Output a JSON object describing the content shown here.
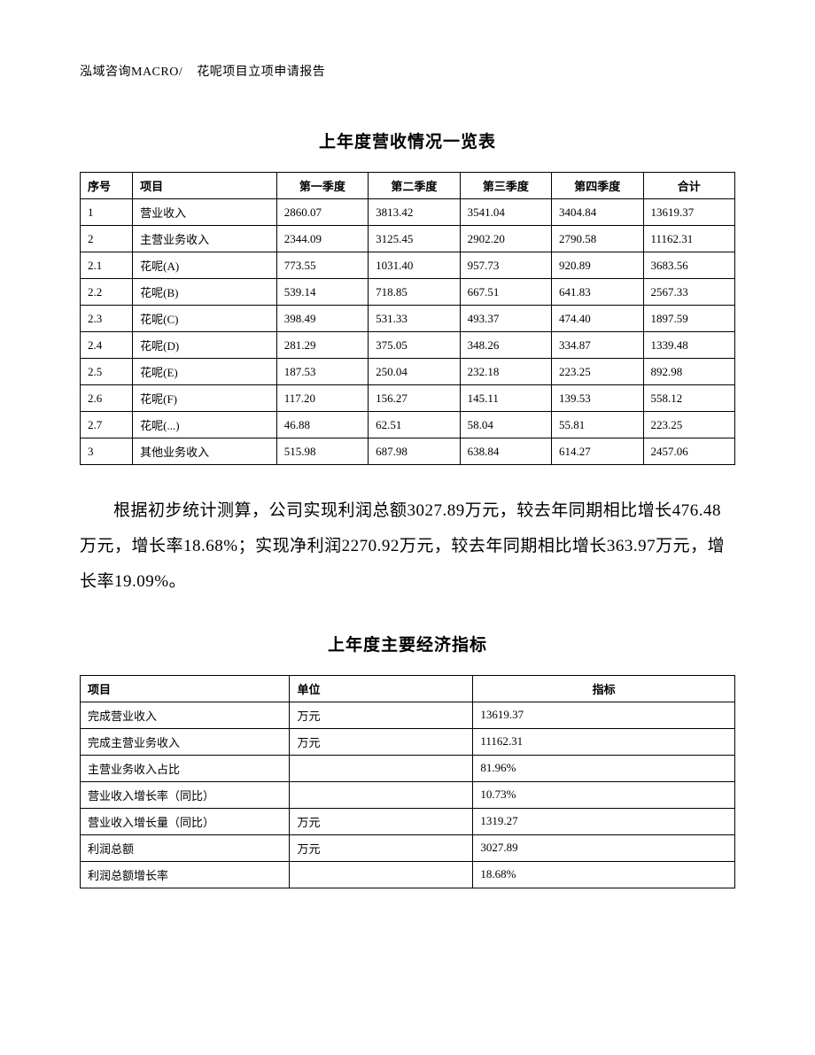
{
  "header": {
    "left": "泓域咨询MACRO/",
    "right": "花呢项目立项申请报告"
  },
  "section1": {
    "title": "上年度营收情况一览表"
  },
  "table1": {
    "headers": {
      "c1": "序号",
      "c2": "项目",
      "c3": "第一季度",
      "c4": "第二季度",
      "c5": "第三季度",
      "c6": "第四季度",
      "c7": "合计"
    },
    "rows": [
      {
        "c1": "1",
        "c2": "营业收入",
        "c3": "2860.07",
        "c4": "3813.42",
        "c5": "3541.04",
        "c6": "3404.84",
        "c7": "13619.37"
      },
      {
        "c1": "2",
        "c2": "主营业务收入",
        "c3": "2344.09",
        "c4": "3125.45",
        "c5": "2902.20",
        "c6": "2790.58",
        "c7": "11162.31"
      },
      {
        "c1": "2.1",
        "c2": "花呢(A)",
        "c3": "773.55",
        "c4": "1031.40",
        "c5": "957.73",
        "c6": "920.89",
        "c7": "3683.56"
      },
      {
        "c1": "2.2",
        "c2": "花呢(B)",
        "c3": "539.14",
        "c4": "718.85",
        "c5": "667.51",
        "c6": "641.83",
        "c7": "2567.33"
      },
      {
        "c1": "2.3",
        "c2": "花呢(C)",
        "c3": "398.49",
        "c4": "531.33",
        "c5": "493.37",
        "c6": "474.40",
        "c7": "1897.59"
      },
      {
        "c1": "2.4",
        "c2": "花呢(D)",
        "c3": "281.29",
        "c4": "375.05",
        "c5": "348.26",
        "c6": "334.87",
        "c7": "1339.48"
      },
      {
        "c1": "2.5",
        "c2": "花呢(E)",
        "c3": "187.53",
        "c4": "250.04",
        "c5": "232.18",
        "c6": "223.25",
        "c7": "892.98"
      },
      {
        "c1": "2.6",
        "c2": "花呢(F)",
        "c3": "117.20",
        "c4": "156.27",
        "c5": "145.11",
        "c6": "139.53",
        "c7": "558.12"
      },
      {
        "c1": "2.7",
        "c2": "花呢(...)",
        "c3": "46.88",
        "c4": "62.51",
        "c5": "58.04",
        "c6": "55.81",
        "c7": "223.25"
      },
      {
        "c1": "3",
        "c2": "其他业务收入",
        "c3": "515.98",
        "c4": "687.98",
        "c5": "638.84",
        "c6": "614.27",
        "c7": "2457.06"
      }
    ]
  },
  "paragraph": {
    "text": "根据初步统计测算，公司实现利润总额3027.89万元，较去年同期相比增长476.48万元，增长率18.68%；实现净利润2270.92万元，较去年同期相比增长363.97万元，增长率19.09%。"
  },
  "section2": {
    "title": "上年度主要经济指标"
  },
  "table2": {
    "headers": {
      "c1": "项目",
      "c2": "单位",
      "c3": "指标"
    },
    "rows": [
      {
        "c1": "完成营业收入",
        "c2": "万元",
        "c3": "13619.37"
      },
      {
        "c1": "完成主营业务收入",
        "c2": "万元",
        "c3": "11162.31"
      },
      {
        "c1": "主营业务收入占比",
        "c2": "",
        "c3": "81.96%"
      },
      {
        "c1": "营业收入增长率（同比）",
        "c2": "",
        "c3": "10.73%"
      },
      {
        "c1": "营业收入增长量（同比）",
        "c2": "万元",
        "c3": "1319.27"
      },
      {
        "c1": "利润总额",
        "c2": "万元",
        "c3": "3027.89"
      },
      {
        "c1": "利润总额增长率",
        "c2": "",
        "c3": "18.68%"
      }
    ]
  }
}
